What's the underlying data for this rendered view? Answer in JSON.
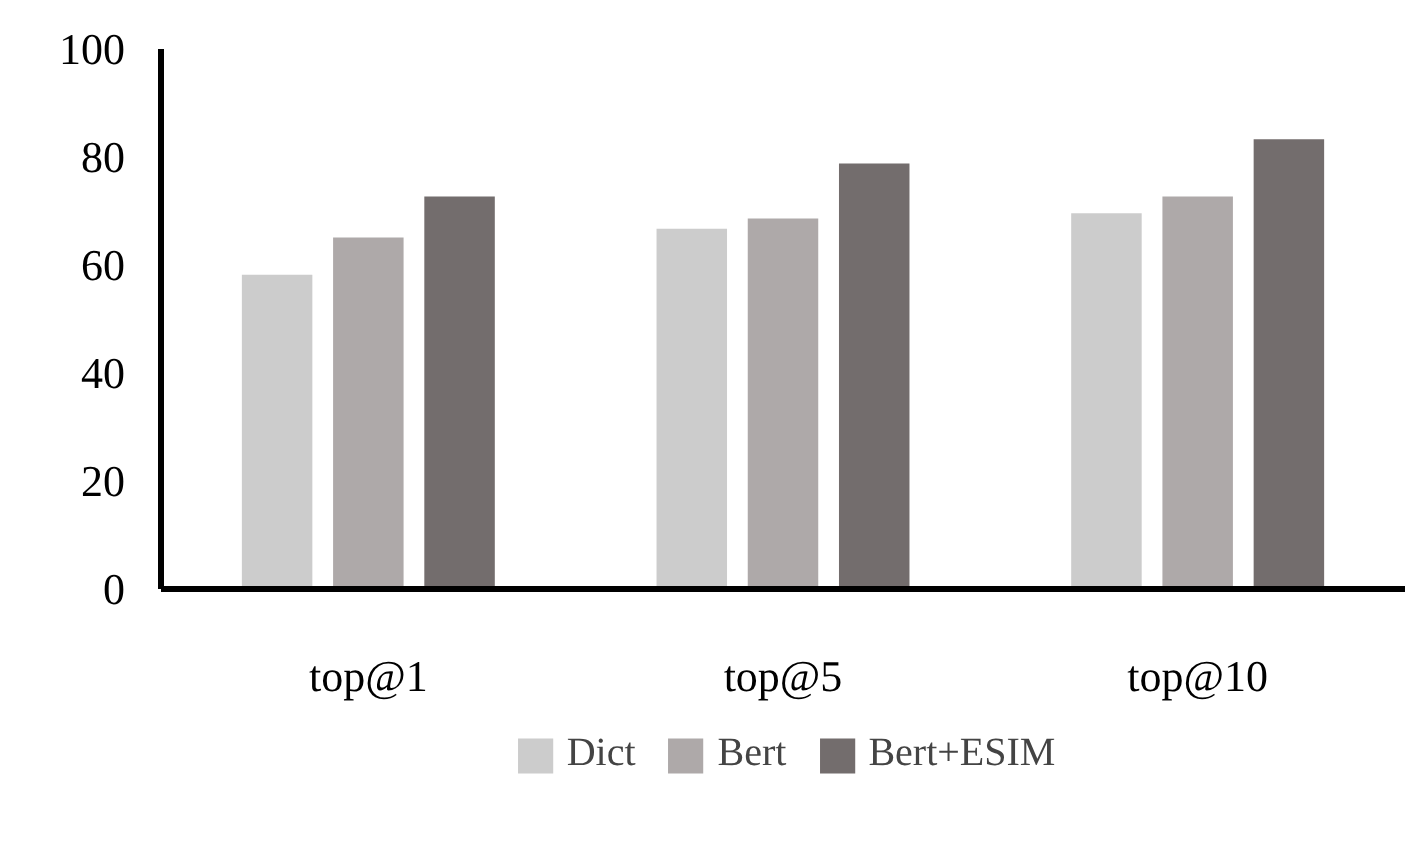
{
  "chart_data": {
    "type": "bar",
    "categories": [
      "top@1",
      "top@5",
      "top@10"
    ],
    "series": [
      {
        "name": "Dict",
        "color": "#cccccc",
        "values": [
          58.2,
          66.7,
          69.6
        ]
      },
      {
        "name": "Bert",
        "color": "#aea9a9",
        "values": [
          65.1,
          68.6,
          72.7
        ]
      },
      {
        "name": "Bert+ESIM",
        "color": "#736d6d",
        "values": [
          72.7,
          78.8,
          83.3
        ]
      }
    ],
    "ylim": [
      0,
      100
    ],
    "yticks": [
      0,
      20,
      40,
      60,
      80,
      100
    ],
    "grid": false,
    "legend": "bottom"
  }
}
